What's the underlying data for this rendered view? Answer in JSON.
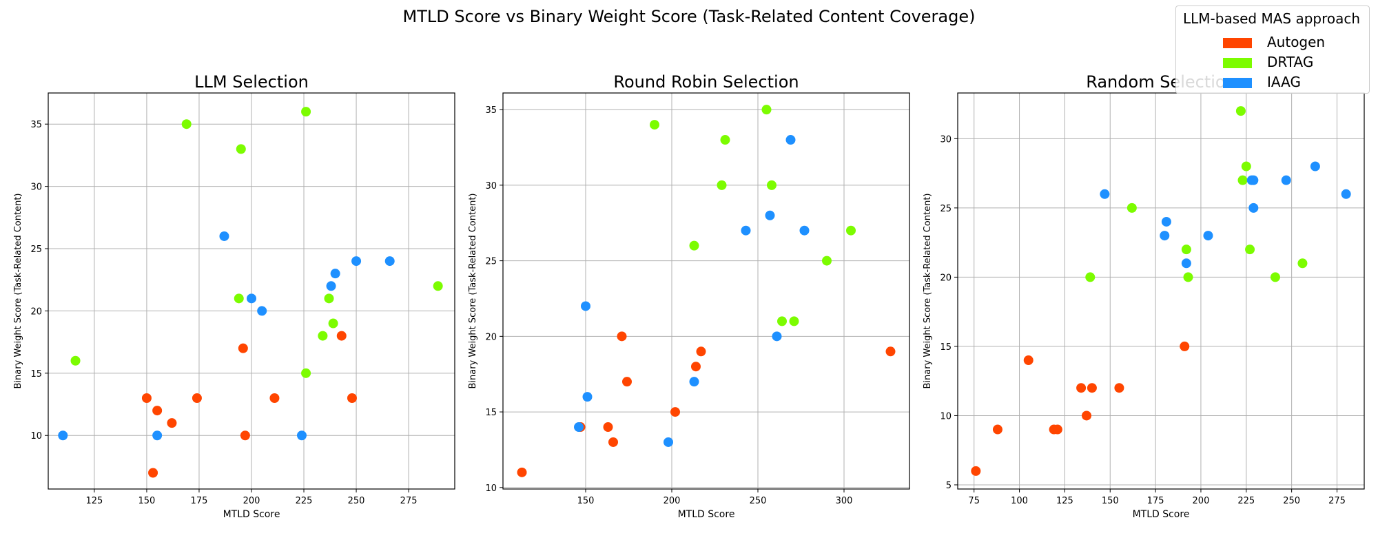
{
  "figure": {
    "title": "MTLD Score vs Binary Weight Score (Task-Related Content Coverage)"
  },
  "legend": {
    "title": "LLM-based MAS approach",
    "placement": "top-right",
    "entries": [
      {
        "name": "Autogen",
        "color": "#FF4500"
      },
      {
        "name": "DRTAG",
        "color": "#7CFC00"
      },
      {
        "name": "IAAG",
        "color": "#1E90FF"
      }
    ]
  },
  "chart_data": [
    {
      "type": "scatter",
      "title": "LLM Selection",
      "xlabel": "MTLD Score",
      "ylabel": "Binary Weight Score (Task-Related Content)",
      "xlim": [
        103,
        297
      ],
      "ylim": [
        5.7,
        37.5
      ],
      "xticks": [
        125,
        150,
        175,
        200,
        225,
        250,
        275
      ],
      "yticks": [
        10,
        15,
        20,
        25,
        30,
        35
      ],
      "grid": true,
      "series": [
        {
          "name": "Autogen",
          "points": [
            [
              150,
              13
            ],
            [
              155,
              12
            ],
            [
              162,
              11
            ],
            [
              174,
              13
            ],
            [
              153,
              7
            ],
            [
              196,
              17
            ],
            [
              197,
              10
            ],
            [
              211,
              13
            ],
            [
              243,
              18
            ],
            [
              248,
              13
            ]
          ]
        },
        {
          "name": "DRTAG",
          "points": [
            [
              116,
              16
            ],
            [
              169,
              35
            ],
            [
              195,
              33
            ],
            [
              194,
              21
            ],
            [
              226,
              36
            ],
            [
              226,
              15
            ],
            [
              234,
              18
            ],
            [
              237,
              21
            ],
            [
              239,
              19
            ],
            [
              289,
              22
            ]
          ]
        },
        {
          "name": "IAAG",
          "points": [
            [
              110,
              10
            ],
            [
              155,
              10
            ],
            [
              187,
              26
            ],
            [
              200,
              21
            ],
            [
              205,
              20
            ],
            [
              224,
              10
            ],
            [
              238,
              22
            ],
            [
              240,
              23
            ],
            [
              250,
              24
            ],
            [
              266,
              24
            ]
          ]
        }
      ]
    },
    {
      "type": "scatter",
      "title": "Round Robin Selection",
      "xlabel": "MTLD Score",
      "ylabel": "Binary Weight Score (Task-Related Content)",
      "xlim": [
        102,
        338
      ],
      "ylim": [
        9.9,
        36.1
      ],
      "xticks": [
        150,
        200,
        250,
        300
      ],
      "yticks": [
        10,
        15,
        20,
        25,
        30,
        35
      ],
      "grid": true,
      "series": [
        {
          "name": "Autogen",
          "points": [
            [
              113,
              11
            ],
            [
              147,
              14
            ],
            [
              163,
              14
            ],
            [
              166,
              13
            ],
            [
              171,
              20
            ],
            [
              174,
              17
            ],
            [
              202,
              15
            ],
            [
              214,
              18
            ],
            [
              217,
              19
            ],
            [
              327,
              19
            ]
          ]
        },
        {
          "name": "DRTAG",
          "points": [
            [
              190,
              34
            ],
            [
              213,
              26
            ],
            [
              229,
              30
            ],
            [
              231,
              33
            ],
            [
              255,
              35
            ],
            [
              258,
              30
            ],
            [
              264,
              21
            ],
            [
              271,
              21
            ],
            [
              290,
              25
            ],
            [
              304,
              27
            ]
          ]
        },
        {
          "name": "IAAG",
          "points": [
            [
              146,
              14
            ],
            [
              150,
              22
            ],
            [
              151,
              16
            ],
            [
              198,
              13
            ],
            [
              213,
              17
            ],
            [
              243,
              27
            ],
            [
              257,
              28
            ],
            [
              261,
              20
            ],
            [
              269,
              33
            ],
            [
              277,
              27
            ]
          ]
        }
      ]
    },
    {
      "type": "scatter",
      "title": "Random Selection",
      "xlabel": "MTLD Score",
      "ylabel": "Binary Weight Score (Task-Related Content)",
      "xlim": [
        66,
        290
      ],
      "ylim": [
        4.7,
        33.3
      ],
      "xticks": [
        75,
        100,
        125,
        150,
        175,
        200,
        225,
        250,
        275
      ],
      "yticks": [
        5,
        10,
        15,
        20,
        25,
        30
      ],
      "grid": true,
      "series": [
        {
          "name": "Autogen",
          "points": [
            [
              76,
              6
            ],
            [
              88,
              9
            ],
            [
              105,
              14
            ],
            [
              119,
              9
            ],
            [
              121,
              9
            ],
            [
              134,
              12
            ],
            [
              137,
              10
            ],
            [
              140,
              12
            ],
            [
              155,
              12
            ],
            [
              191,
              15
            ]
          ]
        },
        {
          "name": "DRTAG",
          "points": [
            [
              139,
              20
            ],
            [
              162,
              25
            ],
            [
              192,
              22
            ],
            [
              193,
              20
            ],
            [
              222,
              32
            ],
            [
              223,
              27
            ],
            [
              225,
              28
            ],
            [
              227,
              22
            ],
            [
              241,
              20
            ],
            [
              256,
              21
            ]
          ]
        },
        {
          "name": "IAAG",
          "points": [
            [
              147,
              26
            ],
            [
              180,
              23
            ],
            [
              181,
              24
            ],
            [
              192,
              21
            ],
            [
              204,
              23
            ],
            [
              228,
              27
            ],
            [
              229,
              25
            ],
            [
              229,
              27
            ],
            [
              247,
              27
            ],
            [
              263,
              28
            ],
            [
              280,
              26
            ]
          ]
        }
      ]
    }
  ]
}
